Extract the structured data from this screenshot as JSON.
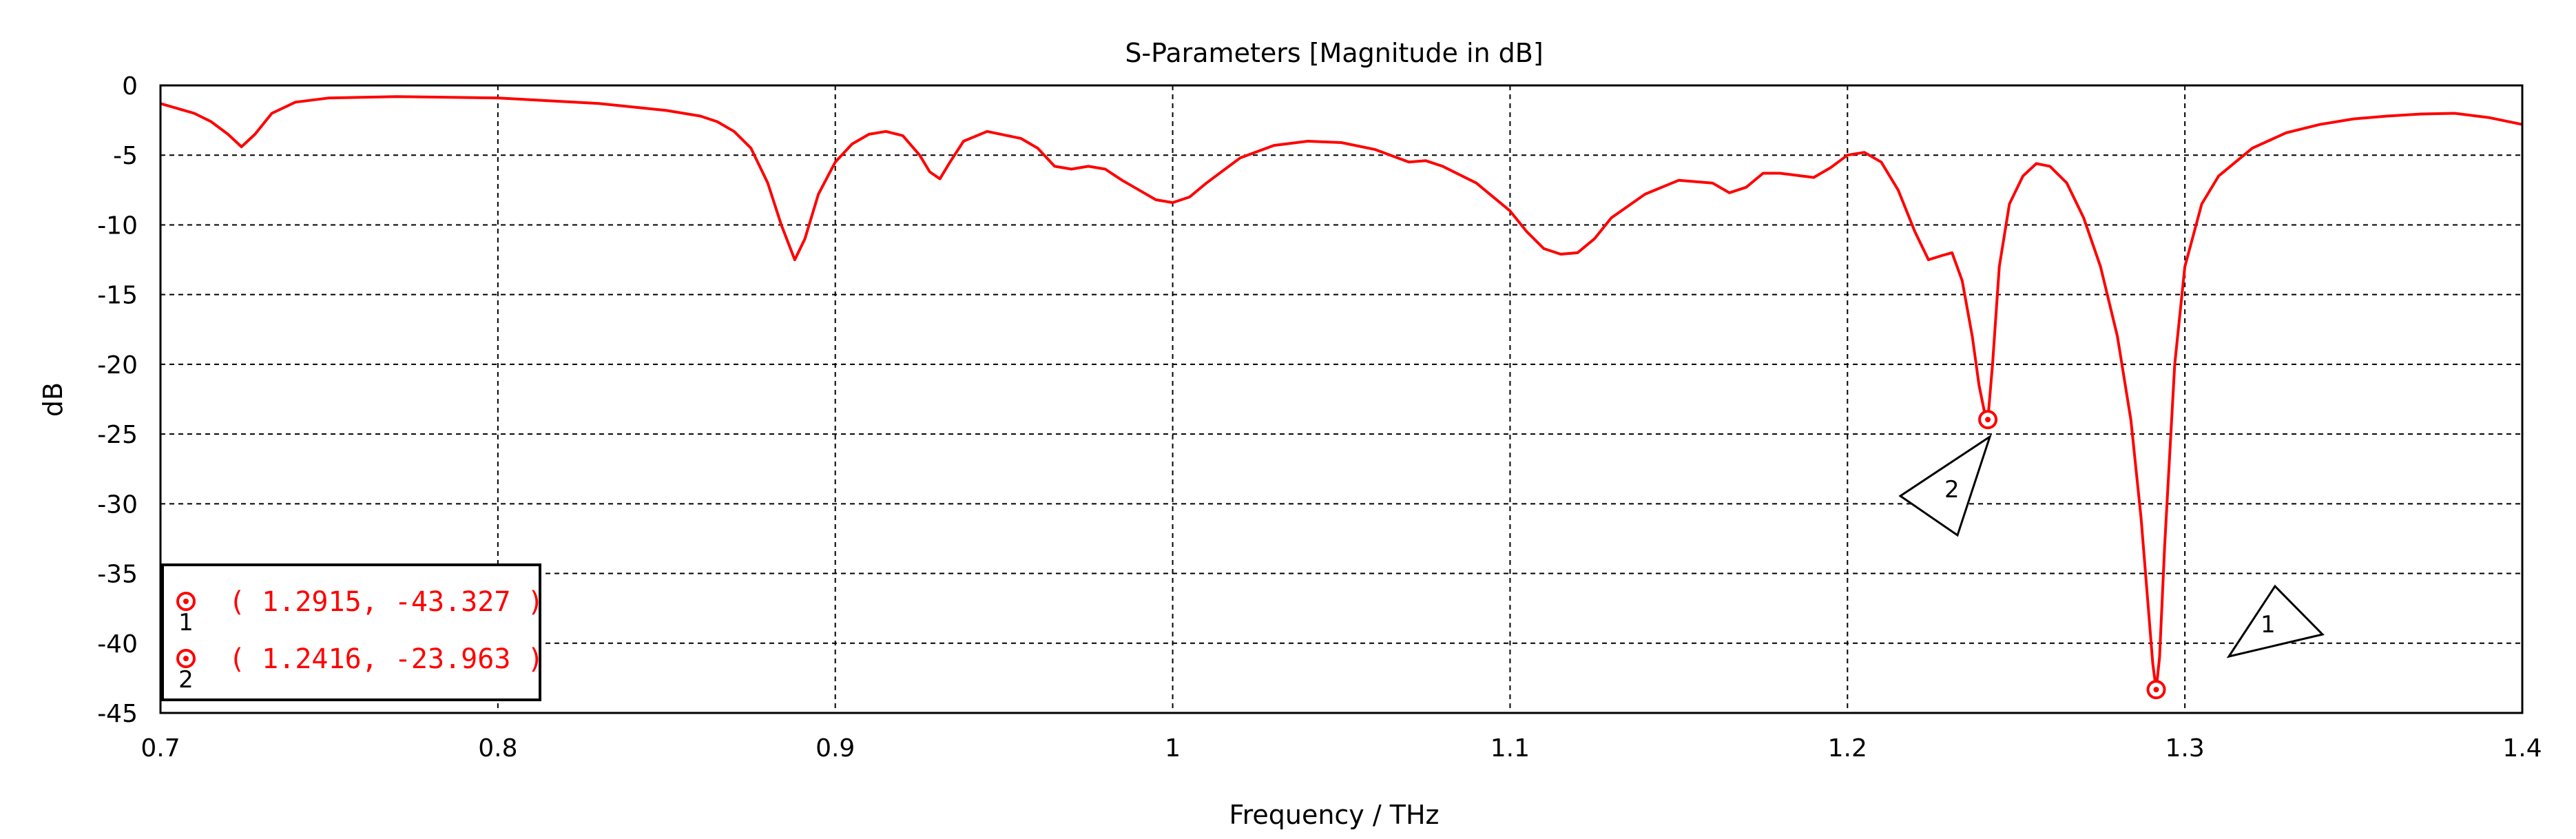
{
  "chart_data": {
    "type": "line",
    "title": "S-Parameters [Magnitude in dB]",
    "xlabel": "Frequency / THz",
    "ylabel": "dB",
    "xlim": [
      0.7,
      1.4
    ],
    "ylim": [
      -45,
      0
    ],
    "xticks": [
      0.7,
      0.8,
      0.9,
      1.0,
      1.1,
      1.2,
      1.3,
      1.4
    ],
    "xtick_labels": [
      "0.7",
      "0.8",
      "0.9",
      "1",
      "1.1",
      "1.2",
      "1.3",
      "1.4"
    ],
    "yticks": [
      0,
      -5,
      -10,
      -15,
      -20,
      -25,
      -30,
      -35,
      -40,
      -45
    ],
    "ytick_labels": [
      "0",
      "-5",
      "-10",
      "-15",
      "-20",
      "-25",
      "-30",
      "-35",
      "-40",
      "-45"
    ],
    "grid": true,
    "color": "#ff0000",
    "series": [
      {
        "x": [
          0.7,
          0.71,
          0.715,
          0.72,
          0.724,
          0.728,
          0.733,
          0.74,
          0.75,
          0.77,
          0.8,
          0.83,
          0.85,
          0.86,
          0.865,
          0.87,
          0.875,
          0.88,
          0.884,
          0.888,
          0.891,
          0.895,
          0.9,
          0.905,
          0.91,
          0.915,
          0.92,
          0.925,
          0.928,
          0.931,
          0.934,
          0.938,
          0.945,
          0.955,
          0.96,
          0.965,
          0.97,
          0.975,
          0.98,
          0.985,
          0.99,
          0.995,
          1.0,
          1.005,
          1.01,
          1.02,
          1.03,
          1.04,
          1.05,
          1.06,
          1.07,
          1.075,
          1.08,
          1.09,
          1.1,
          1.105,
          1.11,
          1.115,
          1.12,
          1.125,
          1.13,
          1.14,
          1.15,
          1.16,
          1.165,
          1.17,
          1.175,
          1.18,
          1.19,
          1.195,
          1.2,
          1.205,
          1.21,
          1.215,
          1.22,
          1.224,
          1.228,
          1.231,
          1.234,
          1.237,
          1.239,
          1.2405,
          1.2416,
          1.243,
          1.245,
          1.248,
          1.252,
          1.256,
          1.26,
          1.265,
          1.27,
          1.275,
          1.28,
          1.284,
          1.287,
          1.289,
          1.2905,
          1.2915,
          1.2925,
          1.294,
          1.297,
          1.3,
          1.305,
          1.31,
          1.32,
          1.33,
          1.34,
          1.35,
          1.36,
          1.37,
          1.38,
          1.39,
          1.4
        ],
        "y": [
          -1.3,
          -2.0,
          -2.6,
          -3.5,
          -4.4,
          -3.5,
          -2.0,
          -1.2,
          -0.9,
          -0.8,
          -0.9,
          -1.3,
          -1.8,
          -2.2,
          -2.6,
          -3.3,
          -4.5,
          -7.0,
          -10.0,
          -12.5,
          -11.0,
          -7.8,
          -5.5,
          -4.2,
          -3.5,
          -3.3,
          -3.6,
          -5.0,
          -6.2,
          -6.7,
          -5.5,
          -4.0,
          -3.3,
          -3.8,
          -4.5,
          -5.8,
          -6.0,
          -5.8,
          -6.0,
          -6.8,
          -7.5,
          -8.2,
          -8.4,
          -8.0,
          -7.0,
          -5.2,
          -4.3,
          -4.0,
          -4.1,
          -4.6,
          -5.5,
          -5.4,
          -5.8,
          -7.0,
          -9.0,
          -10.5,
          -11.7,
          -12.1,
          -12.0,
          -11.0,
          -9.5,
          -7.8,
          -6.8,
          -7.0,
          -7.7,
          -7.3,
          -6.3,
          -6.3,
          -6.6,
          -5.9,
          -5.0,
          -4.8,
          -5.5,
          -7.5,
          -10.5,
          -12.5,
          -12.2,
          -12.0,
          -14.0,
          -18.0,
          -21.5,
          -23.3,
          -23.963,
          -20.0,
          -13.0,
          -8.5,
          -6.5,
          -5.6,
          -5.8,
          -7.0,
          -9.5,
          -13.0,
          -18.0,
          -24.0,
          -31.0,
          -37.0,
          -41.5,
          -43.327,
          -41.0,
          -33.0,
          -20.0,
          -13.0,
          -8.5,
          -6.5,
          -4.5,
          -3.4,
          -2.8,
          -2.4,
          -2.2,
          -2.05,
          -2.0,
          -2.3,
          -2.8
        ]
      }
    ],
    "markers": [
      {
        "id": "1",
        "x": 1.2915,
        "y": -43.327,
        "label": "( 1.2915, -43.327 )"
      },
      {
        "id": "2",
        "x": 1.2416,
        "y": -23.963,
        "label": "( 1.2416, -23.963 )"
      }
    ]
  }
}
